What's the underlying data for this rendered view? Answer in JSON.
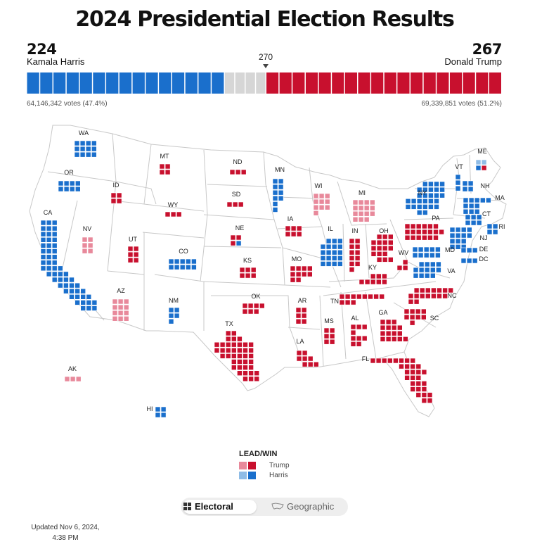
{
  "title": "2024 Presidential Election Results",
  "harris": {
    "name": "Kamala Harris",
    "electoral_votes": "224",
    "popular": "64,146,342 votes (47.4%)"
  },
  "trump": {
    "name": "Donald Trump",
    "electoral_votes": "267",
    "popular": "69,339,851 votes (51.2%)"
  },
  "threshold": "270",
  "bar_counts": {
    "harris": 224,
    "undecided": 47,
    "trump": 267,
    "total": 538
  },
  "colors": {
    "trump_win": "#c8102e",
    "trump_lead": "#e8899b",
    "harris_win": "#1a6fcc",
    "harris_lead": "#8fbce6",
    "undecided": "#d6d6d6"
  },
  "legend": {
    "title": "LEAD/WIN",
    "trump": "Trump",
    "harris": "Harris"
  },
  "toggle": {
    "electoral": "Electoral",
    "geographic": "Geographic",
    "selected": "Electoral"
  },
  "updated": "Updated Nov 6, 2024, 4:38 PM",
  "states": [
    {
      "abbr": "WA",
      "status": "harris_win",
      "ev": 12
    },
    {
      "abbr": "OR",
      "status": "harris_win",
      "ev": 8
    },
    {
      "abbr": "CA",
      "status": "harris_win",
      "ev": 54
    },
    {
      "abbr": "NV",
      "status": "trump_lead",
      "ev": 6
    },
    {
      "abbr": "ID",
      "status": "trump_win",
      "ev": 4
    },
    {
      "abbr": "MT",
      "status": "trump_win",
      "ev": 4
    },
    {
      "abbr": "WY",
      "status": "trump_win",
      "ev": 3
    },
    {
      "abbr": "UT",
      "status": "trump_win",
      "ev": 6
    },
    {
      "abbr": "AZ",
      "status": "trump_lead",
      "ev": 11
    },
    {
      "abbr": "CO",
      "status": "harris_win",
      "ev": 10
    },
    {
      "abbr": "NM",
      "status": "harris_win",
      "ev": 5
    },
    {
      "abbr": "ND",
      "status": "trump_win",
      "ev": 3
    },
    {
      "abbr": "SD",
      "status": "trump_win",
      "ev": 3
    },
    {
      "abbr": "NE",
      "status": "trump_win",
      "ev": 5
    },
    {
      "abbr": "KS",
      "status": "trump_win",
      "ev": 6
    },
    {
      "abbr": "OK",
      "status": "trump_win",
      "ev": 7
    },
    {
      "abbr": "TX",
      "status": "trump_win",
      "ev": 40
    },
    {
      "abbr": "MN",
      "status": "harris_win",
      "ev": 10
    },
    {
      "abbr": "IA",
      "status": "trump_win",
      "ev": 6
    },
    {
      "abbr": "MO",
      "status": "trump_win",
      "ev": 10
    },
    {
      "abbr": "AR",
      "status": "trump_win",
      "ev": 6
    },
    {
      "abbr": "LA",
      "status": "trump_win",
      "ev": 8
    },
    {
      "abbr": "WI",
      "status": "trump_lead",
      "ev": 10
    },
    {
      "abbr": "IL",
      "status": "harris_win",
      "ev": 19
    },
    {
      "abbr": "MI",
      "status": "trump_lead",
      "ev": 15
    },
    {
      "abbr": "IN",
      "status": "trump_win",
      "ev": 11
    },
    {
      "abbr": "OH",
      "status": "trump_win",
      "ev": 17
    },
    {
      "abbr": "KY",
      "status": "trump_win",
      "ev": 8
    },
    {
      "abbr": "TN",
      "status": "trump_win",
      "ev": 11
    },
    {
      "abbr": "MS",
      "status": "trump_win",
      "ev": 6
    },
    {
      "abbr": "AL",
      "status": "trump_win",
      "ev": 9
    },
    {
      "abbr": "GA",
      "status": "trump_win",
      "ev": 16
    },
    {
      "abbr": "FL",
      "status": "trump_win",
      "ev": 30
    },
    {
      "abbr": "SC",
      "status": "trump_win",
      "ev": 9
    },
    {
      "abbr": "NC",
      "status": "trump_win",
      "ev": 16
    },
    {
      "abbr": "VA",
      "status": "harris_win",
      "ev": 13
    },
    {
      "abbr": "WV",
      "status": "trump_win",
      "ev": 4
    },
    {
      "abbr": "PA",
      "status": "trump_win",
      "ev": 19
    },
    {
      "abbr": "NY",
      "status": "harris_win",
      "ev": 28
    },
    {
      "abbr": "VT",
      "status": "harris_win",
      "ev": 3
    },
    {
      "abbr": "NH",
      "status": "harris_win",
      "ev": 4
    },
    {
      "abbr": "ME",
      "status": "split",
      "ev": 4
    },
    {
      "abbr": "MA",
      "status": "harris_win",
      "ev": 11
    },
    {
      "abbr": "CT",
      "status": "harris_win",
      "ev": 7
    },
    {
      "abbr": "RI",
      "status": "harris_win",
      "ev": 4
    },
    {
      "abbr": "NJ",
      "status": "harris_win",
      "ev": 14
    },
    {
      "abbr": "DE",
      "status": "harris_win",
      "ev": 3
    },
    {
      "abbr": "MD",
      "status": "harris_win",
      "ev": 10
    },
    {
      "abbr": "DC",
      "status": "harris_win",
      "ev": 3
    },
    {
      "abbr": "AK",
      "status": "trump_lead",
      "ev": 3
    },
    {
      "abbr": "HI",
      "status": "harris_win",
      "ev": 4
    }
  ]
}
